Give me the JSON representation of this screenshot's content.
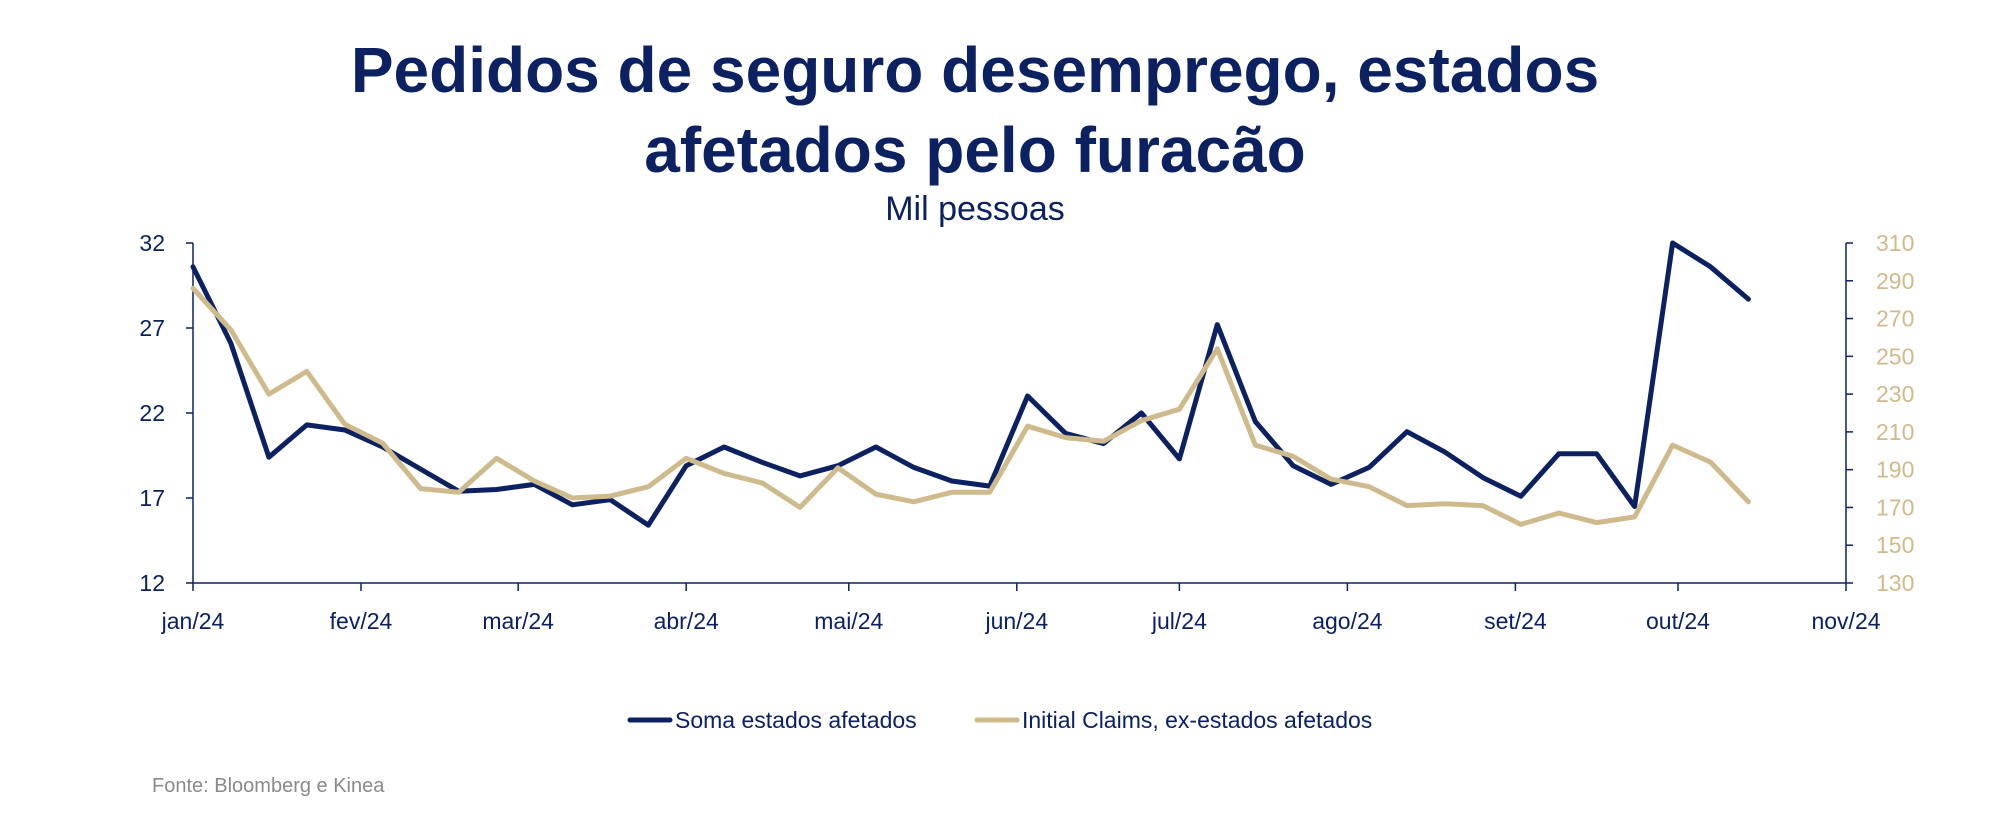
{
  "chart_data": {
    "type": "line",
    "title": "Pedidos de seguro desemprego, estados afetados pelo furacão",
    "title_line1": "Pedidos de seguro desemprego, estados",
    "title_line2": "afetados pelo furacão",
    "subtitle": "Mil pessoas",
    "source": "Fonte: Bloomberg e Kinea",
    "x_ticks": [
      "jan/24",
      "fev/24",
      "mar/24",
      "abr/24",
      "mai/24",
      "jun/24",
      "jul/24",
      "ago/24",
      "set/24",
      "out/24",
      "nov/24"
    ],
    "x_tick_dates": [
      "2024-01-01",
      "2024-02-01",
      "2024-03-01",
      "2024-04-01",
      "2024-05-01",
      "2024-06-01",
      "2024-07-01",
      "2024-08-01",
      "2024-09-01",
      "2024-10-01",
      "2024-11-01"
    ],
    "x_range": [
      "2024-01-01",
      "2024-11-01"
    ],
    "y_left": {
      "range": [
        12,
        32
      ],
      "ticks": [
        12,
        17,
        22,
        27,
        32
      ]
    },
    "y_right": {
      "range": [
        130,
        310
      ],
      "ticks": [
        130,
        150,
        170,
        190,
        210,
        230,
        250,
        270,
        290,
        310
      ]
    },
    "x": [
      "2024-01-01",
      "2024-01-08",
      "2024-01-15",
      "2024-01-22",
      "2024-01-29",
      "2024-02-05",
      "2024-02-12",
      "2024-02-19",
      "2024-02-26",
      "2024-03-04",
      "2024-03-11",
      "2024-03-18",
      "2024-03-25",
      "2024-04-01",
      "2024-04-08",
      "2024-04-15",
      "2024-04-22",
      "2024-04-29",
      "2024-05-06",
      "2024-05-13",
      "2024-05-20",
      "2024-05-27",
      "2024-06-03",
      "2024-06-10",
      "2024-06-17",
      "2024-06-24",
      "2024-07-01",
      "2024-07-08",
      "2024-07-15",
      "2024-07-22",
      "2024-07-29",
      "2024-08-05",
      "2024-08-12",
      "2024-08-19",
      "2024-08-26",
      "2024-09-02",
      "2024-09-09",
      "2024-09-16",
      "2024-09-23",
      "2024-09-30",
      "2024-10-07",
      "2024-10-14"
    ],
    "series": [
      {
        "name": "Soma estados afetados",
        "axis": "left",
        "color": "#0b2161",
        "values": [
          30.6,
          26.1,
          19.4,
          21.3,
          21.0,
          20.0,
          18.7,
          17.4,
          17.5,
          17.8,
          16.6,
          16.9,
          15.4,
          18.9,
          20.0,
          19.1,
          18.3,
          18.9,
          20.0,
          18.8,
          18.0,
          17.7,
          23.0,
          20.8,
          20.2,
          22.0,
          19.3,
          27.2,
          21.5,
          18.9,
          17.8,
          18.8,
          20.9,
          19.7,
          18.2,
          17.1,
          19.6,
          19.6,
          16.5,
          32.0,
          30.6,
          28.7
        ]
      },
      {
        "name": "Initial Claims, ex-estados afetados",
        "axis": "right",
        "color": "#cfba8c",
        "values": [
          286,
          264,
          230,
          242,
          214,
          204,
          180,
          178,
          196,
          184,
          175,
          176,
          181,
          196,
          188,
          183,
          170,
          191,
          177,
          173,
          178,
          178,
          213,
          207,
          205,
          216,
          222,
          254,
          203,
          197,
          185,
          181,
          171,
          172,
          171,
          161,
          167,
          162,
          165,
          203,
          194,
          173
        ]
      }
    ],
    "legend_position": "bottom",
    "grid": false
  }
}
